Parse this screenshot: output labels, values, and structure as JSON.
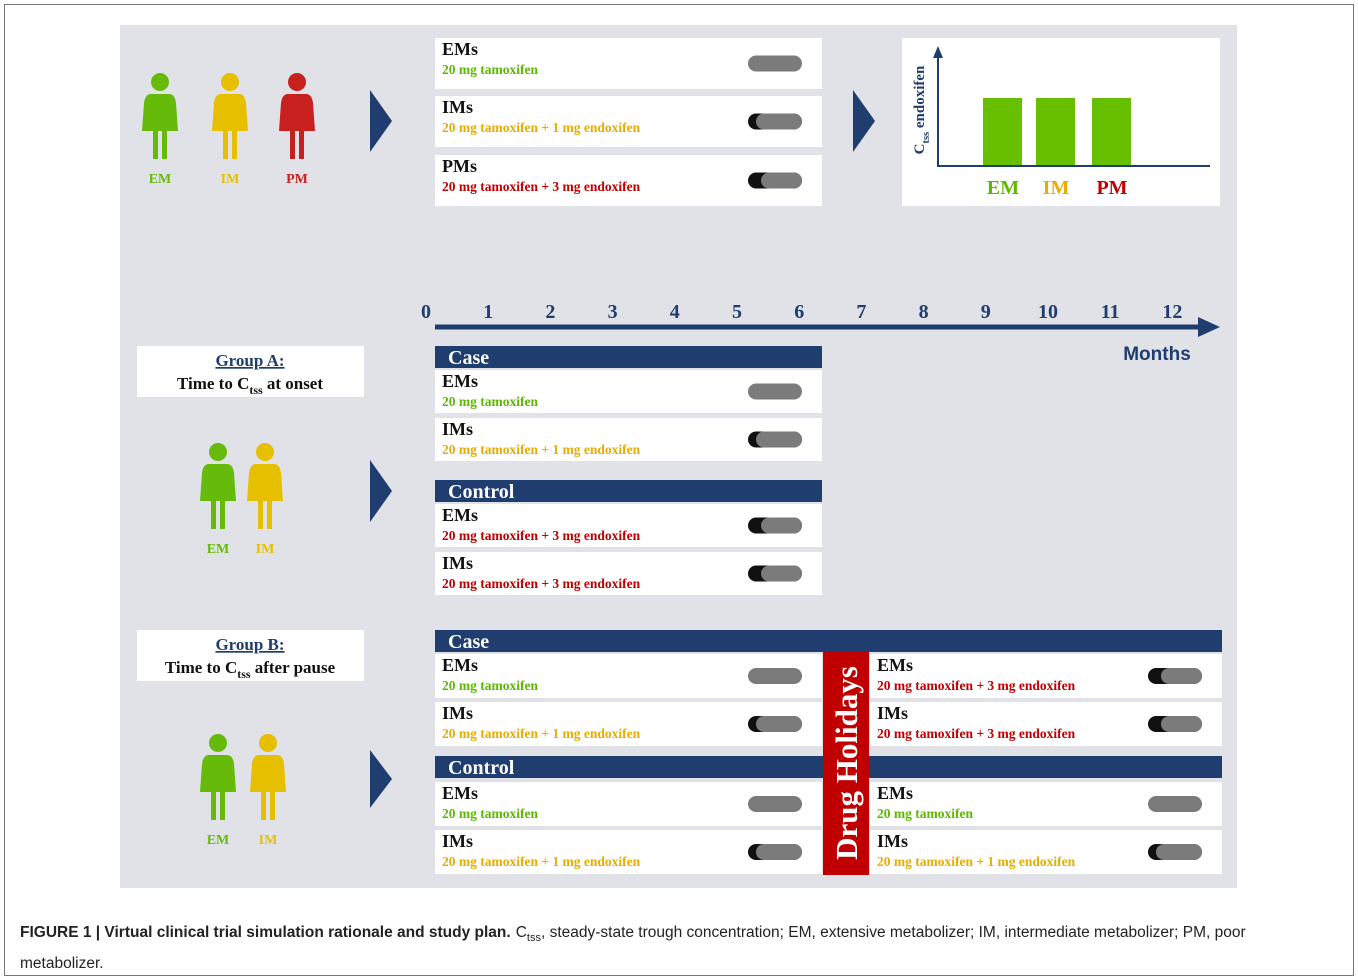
{
  "screening": {
    "phenotypes": [
      {
        "label": "EM",
        "color": "#66bb0a"
      },
      {
        "label": "IM",
        "color": "#e6bf00"
      },
      {
        "label": "PM",
        "color": "#c8201f"
      }
    ],
    "regimens": [
      {
        "group": "EMs",
        "dose": "20 mg tamoxifen",
        "color": "#5cb800"
      },
      {
        "group": "IMs",
        "dose": "20 mg tamoxifen + 1 mg endoxifen",
        "color": "#e8ac00"
      },
      {
        "group": "PMs",
        "dose": "20 mg tamoxifen + 3 mg endoxifen",
        "color": "#c00000"
      }
    ],
    "plot": {
      "y_label": [
        "C",
        "tss",
        " endoxifen"
      ],
      "bar_color": "#66c000",
      "bars": [
        {
          "label": "EM",
          "color": "#5cb800"
        },
        {
          "label": "IM",
          "color": "#e8ac00"
        },
        {
          "label": "PM",
          "color": "#c00000"
        }
      ]
    }
  },
  "timeline": {
    "ticks": [
      0,
      1,
      2,
      3,
      4,
      5,
      6,
      7,
      8,
      9,
      10,
      11,
      12
    ],
    "unit": "Months"
  },
  "group_a": {
    "title": "Group A:",
    "subtitle": [
      "Time to C",
      "tss",
      " at onset"
    ],
    "phenotypes": [
      {
        "label": "EM",
        "color": "#66bb0a"
      },
      {
        "label": "IM",
        "color": "#e6bf00"
      }
    ],
    "case": {
      "label": "Case",
      "rows": [
        {
          "group": "EMs",
          "dose": "20 mg tamoxifen",
          "color": "#5cb800"
        },
        {
          "group": "IMs",
          "dose": "20 mg tamoxifen + 1 mg endoxifen",
          "color": "#e8ac00"
        }
      ]
    },
    "control": {
      "label": "Control",
      "rows": [
        {
          "group": "EMs",
          "dose": "20 mg tamoxifen + 3 mg endoxifen",
          "color": "#c00000"
        },
        {
          "group": "IMs",
          "dose": "20 mg tamoxifen + 3 mg endoxifen",
          "color": "#c00000"
        }
      ]
    }
  },
  "group_b": {
    "title": "Group B:",
    "subtitle": [
      "Time to C",
      "tss",
      " after pause"
    ],
    "phenotypes": [
      {
        "label": "EM",
        "color": "#66bb0a"
      },
      {
        "label": "IM",
        "color": "#e6bf00"
      }
    ],
    "holiday": "Drug Holidays",
    "case": {
      "label": "Case",
      "rows": [
        {
          "group": "EMs",
          "dose": "20 mg tamoxifen",
          "color": "#5cb800"
        },
        {
          "group": "IMs",
          "dose": "20 mg tamoxifen + 1 mg endoxifen",
          "color": "#e8ac00"
        }
      ],
      "rows_after": [
        {
          "group": "EMs",
          "dose": "20 mg tamoxifen + 3 mg endoxifen",
          "color": "#c00000"
        },
        {
          "group": "IMs",
          "dose": "20 mg tamoxifen + 3 mg endoxifen",
          "color": "#c00000"
        }
      ]
    },
    "control": {
      "label": "Control",
      "rows": [
        {
          "group": "EMs",
          "dose": "20 mg tamoxifen",
          "color": "#5cb800"
        },
        {
          "group": "IMs",
          "dose": "20 mg tamoxifen + 1 mg endoxifen",
          "color": "#e8ac00"
        }
      ],
      "rows_after": [
        {
          "group": "EMs",
          "dose": "20 mg tamoxifen",
          "color": "#5cb800"
        },
        {
          "group": "IMs",
          "dose": "20 mg tamoxifen + 1 mg endoxifen",
          "color": "#e8ac00"
        }
      ]
    }
  },
  "caption": {
    "title": "FIGURE 1 | Virtual clinical trial simulation rationale and study plan.",
    "text": [
      "C",
      "tss",
      ", steady-state trough concentration; EM, extensive metabolizer; IM, intermediate metabolizer; PM, poor metabolizer."
    ]
  }
}
